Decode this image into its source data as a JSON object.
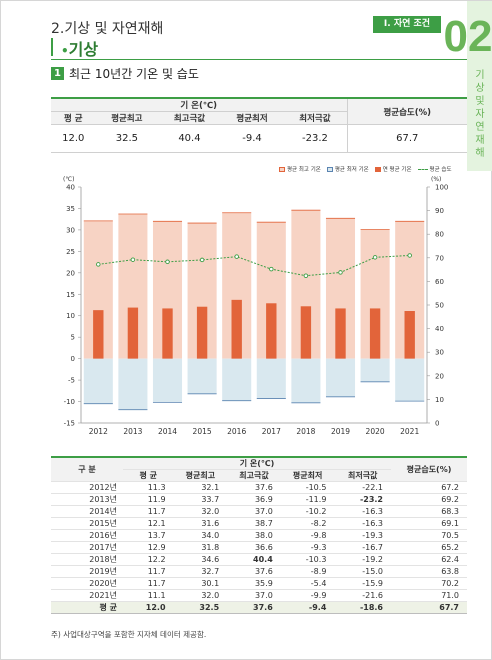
{
  "header": {
    "title": "2.기상 및 자연재해",
    "section_tag": "I. 자연 조건",
    "side_number": "02",
    "side_text": [
      "기",
      "상",
      "및",
      "자",
      "연",
      "재",
      "해"
    ]
  },
  "subheading": "기상",
  "item": {
    "number": "1",
    "title": "최근 10년간 기온 및 습도"
  },
  "summary_table": {
    "group_header": "기 온(℃)",
    "columns": [
      "평 균",
      "평균최고",
      "최고극값",
      "평균최저",
      "최저극값"
    ],
    "humidity_header": "평균습도(%)",
    "values": [
      "12.0",
      "32.5",
      "40.4",
      "-9.4",
      "-23.2"
    ],
    "humidity_value": "67.7"
  },
  "chart_data": {
    "type": "bar",
    "categories": [
      "2012",
      "2013",
      "2014",
      "2015",
      "2016",
      "2017",
      "2018",
      "2019",
      "2020",
      "2021"
    ],
    "series": [
      {
        "name": "평균 최고 기온",
        "values": [
          32.1,
          33.7,
          32.0,
          31.6,
          34.0,
          31.8,
          34.6,
          32.7,
          30.1,
          32.0
        ],
        "color": "#f7d3c4"
      },
      {
        "name": "평균 최저 기온",
        "values": [
          -10.5,
          -11.9,
          -10.2,
          -8.2,
          -9.8,
          -9.3,
          -10.3,
          -8.9,
          -5.4,
          -9.9
        ],
        "color": "#d9e8ef"
      },
      {
        "name": "연 평균 기온",
        "values": [
          11.3,
          11.9,
          11.7,
          12.1,
          13.7,
          12.9,
          12.2,
          11.7,
          11.7,
          11.1
        ],
        "color": "#e2643a"
      },
      {
        "name": "평균 습도",
        "values": [
          67.2,
          69.2,
          68.3,
          69.1,
          70.5,
          65.2,
          62.4,
          63.8,
          70.2,
          71.0
        ],
        "color": "#3d9e45",
        "axis": "right"
      }
    ],
    "left_axis": {
      "unit": "(℃)",
      "ylim": [
        -15,
        40
      ],
      "ticks": [
        -15,
        -10,
        -5,
        0,
        5,
        10,
        15,
        20,
        25,
        30,
        35,
        40
      ]
    },
    "right_axis": {
      "unit": "(%)",
      "ylim": [
        0,
        100
      ],
      "ticks": [
        0,
        10,
        20,
        30,
        40,
        50,
        60,
        70,
        80,
        90,
        100
      ]
    },
    "grid": false,
    "legend_position": "top-right"
  },
  "detail_table": {
    "col_label": "구 분",
    "group_header": "기 온(℃)",
    "columns": [
      "평 균",
      "평균최고",
      "최고극값",
      "평균최저",
      "최저극값"
    ],
    "humidity_header": "평균습도(%)",
    "rows": [
      {
        "year": "2012년",
        "vals": [
          "11.3",
          "32.1",
          "37.6",
          "-10.5",
          "-22.1"
        ],
        "hum": "67.2"
      },
      {
        "year": "2013년",
        "vals": [
          "11.9",
          "33.7",
          "36.9",
          "-11.9",
          "-23.2"
        ],
        "hum": "69.2"
      },
      {
        "year": "2014년",
        "vals": [
          "11.7",
          "32.0",
          "37.0",
          "-10.2",
          "-16.3"
        ],
        "hum": "68.3"
      },
      {
        "year": "2015년",
        "vals": [
          "12.1",
          "31.6",
          "38.7",
          "-8.2",
          "-16.3"
        ],
        "hum": "69.1"
      },
      {
        "year": "2016년",
        "vals": [
          "13.7",
          "34.0",
          "38.0",
          "-9.8",
          "-19.3"
        ],
        "hum": "70.5"
      },
      {
        "year": "2017년",
        "vals": [
          "12.9",
          "31.8",
          "36.6",
          "-9.3",
          "-16.7"
        ],
        "hum": "65.2"
      },
      {
        "year": "2018년",
        "vals": [
          "12.2",
          "34.6",
          "40.4",
          "-10.3",
          "-19.2"
        ],
        "hum": "62.4"
      },
      {
        "year": "2019년",
        "vals": [
          "11.7",
          "32.7",
          "37.6",
          "-8.9",
          "-15.0"
        ],
        "hum": "63.8"
      },
      {
        "year": "2020년",
        "vals": [
          "11.7",
          "30.1",
          "35.9",
          "-5.4",
          "-15.9"
        ],
        "hum": "70.2"
      },
      {
        "year": "2021년",
        "vals": [
          "11.1",
          "32.0",
          "37.0",
          "-9.9",
          "-21.6"
        ],
        "hum": "71.0"
      }
    ],
    "avg": {
      "year": "평 균",
      "vals": [
        "12.0",
        "32.5",
        "37.6",
        "-9.4",
        "-18.6"
      ],
      "hum": "67.7"
    },
    "bold_cells": [
      {
        "row": 1,
        "col": 4
      },
      {
        "row": 6,
        "col": 2
      }
    ]
  },
  "footnote": "주) 사업대상구역을 포함한 지자체 데이터 제공함."
}
